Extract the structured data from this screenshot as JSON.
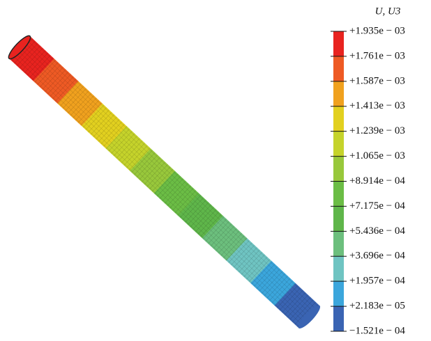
{
  "legend": {
    "title": "U, U3",
    "labels": [
      "+1.935e − 03",
      "+1.761e − 03",
      "+1.587e − 03",
      "+1.413e − 03",
      "+1.239e − 03",
      "+1.065e − 03",
      "+8.914e − 04",
      "+7.175e − 04",
      "+5.436e − 04",
      "+3.696e − 04",
      "+1.957e − 04",
      "+2.183e − 05",
      "−1.521e − 04"
    ],
    "colors": [
      "#e8231f",
      "#ee5a24",
      "#f0a11e",
      "#e2d01f",
      "#c5d32b",
      "#98c83b",
      "#6bbd45",
      "#5fb64a",
      "#6cbf7d",
      "#6fc4c2",
      "#3ba6dc",
      "#3a64b3",
      "#2f3f95"
    ]
  }
}
